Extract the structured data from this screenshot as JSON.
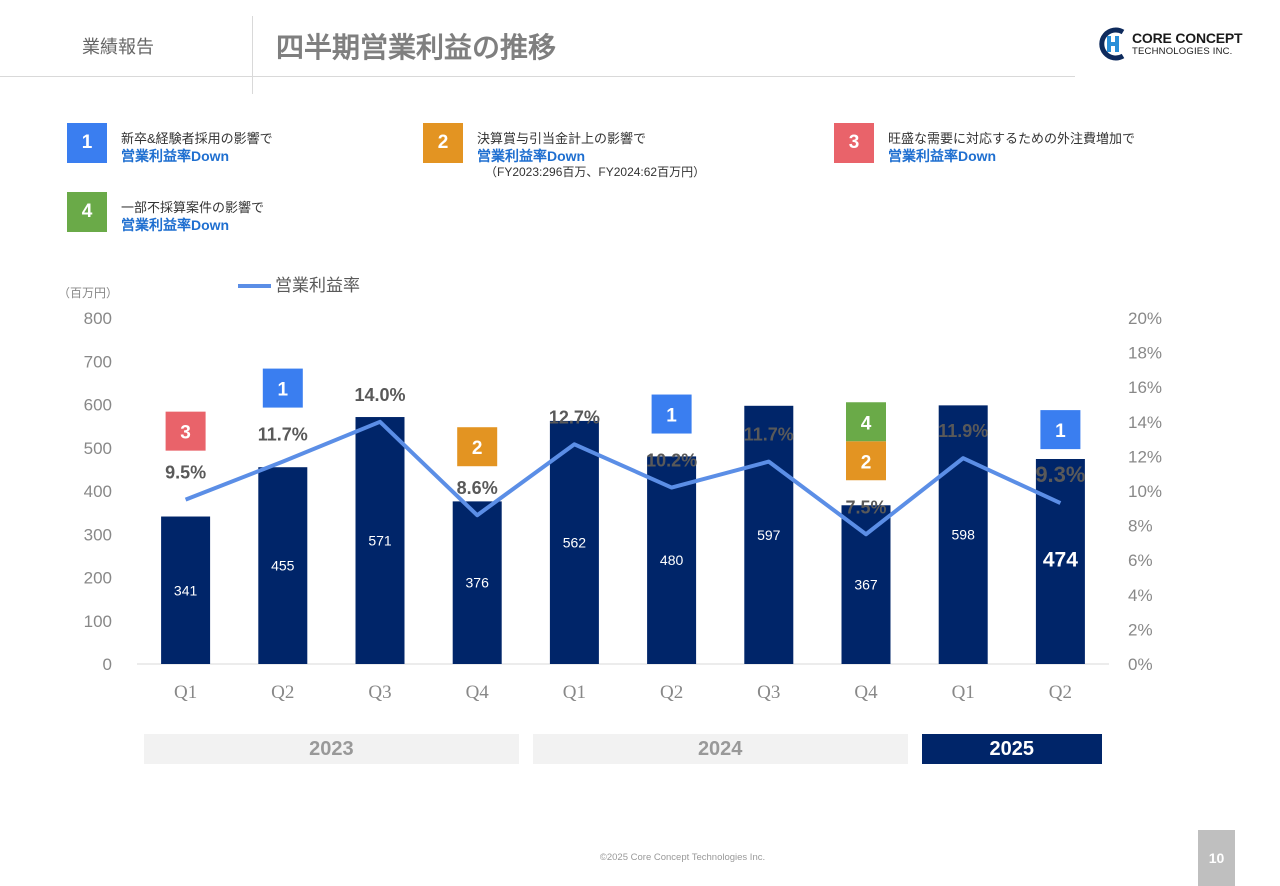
{
  "header": {
    "section": "業績報告",
    "title": "四半期営業利益の推移",
    "logo_line1": "CORE CONCEPT",
    "logo_line2": "TECHNOLOGIES INC."
  },
  "notes": [
    {
      "num": "1",
      "color": "#3a7ef0",
      "line1": "新卒&経験者採用の影響で",
      "line2": "営業利益率Down",
      "line3": ""
    },
    {
      "num": "2",
      "color": "#e39422",
      "line1": "決算賞与引当金計上の影響で",
      "line2": "営業利益率Down",
      "line3": "（FY2023:296百万、FY2024:62百万円）"
    },
    {
      "num": "3",
      "color": "#e9636a",
      "line1": "旺盛な需要に対応するための外注費増加で",
      "line2": "営業利益率Down",
      "line3": ""
    },
    {
      "num": "4",
      "color": "#6aaa48",
      "line1": "一部不採算案件の影響で",
      "line2": "営業利益率Down",
      "line3": ""
    }
  ],
  "chart_data": {
    "type": "bar",
    "unit_label": "（百万円）",
    "categories": [
      "Q1",
      "Q2",
      "Q3",
      "Q4",
      "Q1",
      "Q2",
      "Q3",
      "Q4",
      "Q1",
      "Q2"
    ],
    "values": [
      341,
      455,
      571,
      376,
      562,
      480,
      597,
      367,
      598,
      474
    ],
    "value_labels": [
      "341",
      "455",
      "571",
      "376",
      "562",
      "480",
      "597",
      "367",
      "598",
      "474"
    ],
    "line_series": {
      "name": "営業利益率",
      "values": [
        9.5,
        11.7,
        14.0,
        8.6,
        12.7,
        10.2,
        11.7,
        7.5,
        11.9,
        9.3
      ],
      "labels": [
        "9.5%",
        "11.7%",
        "14.0%",
        "8.6%",
        "12.7%",
        "10.2%",
        "11.7%",
        "7.5%",
        "11.9%",
        "9.3%"
      ],
      "color": "#5b8ee6"
    },
    "ylim": [
      0,
      800
    ],
    "y_ticks": [
      "0",
      "100",
      "200",
      "300",
      "400",
      "500",
      "600",
      "700",
      "800"
    ],
    "y2lim": [
      0,
      20
    ],
    "y2_ticks": [
      "0%",
      "2%",
      "4%",
      "6%",
      "8%",
      "10%",
      "12%",
      "14%",
      "16%",
      "18%",
      "20%"
    ],
    "bar_color": "#002569",
    "highlight_last": true,
    "badges": [
      {
        "index": 0,
        "nums": [
          "3"
        ]
      },
      {
        "index": 1,
        "nums": [
          "1"
        ]
      },
      {
        "index": 3,
        "nums": [
          "2"
        ]
      },
      {
        "index": 5,
        "nums": [
          "1"
        ]
      },
      {
        "index": 7,
        "nums": [
          "4",
          "2"
        ]
      },
      {
        "index": 9,
        "nums": [
          "1"
        ]
      }
    ],
    "badge_colors": {
      "1": "#3a7ef0",
      "2": "#e39422",
      "3": "#e9636a",
      "4": "#6aaa48"
    },
    "years": [
      {
        "label": "2023",
        "start": 0,
        "end": 3,
        "highlight": false
      },
      {
        "label": "2024",
        "start": 4,
        "end": 7,
        "highlight": false
      },
      {
        "label": "2025",
        "start": 8,
        "end": 9,
        "highlight": true
      }
    ]
  },
  "footer": {
    "copyright": "©2025 Core Concept Technologies Inc.",
    "page": "10"
  }
}
